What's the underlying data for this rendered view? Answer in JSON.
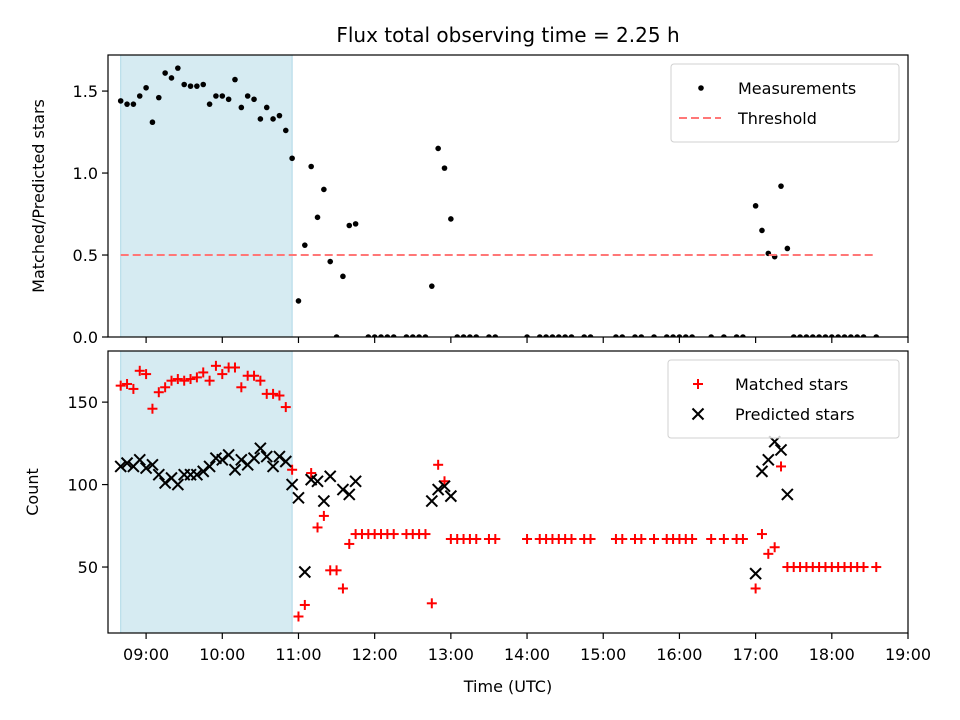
{
  "figure": {
    "title": "Flux total observing time = 2.25 h",
    "xlabel": "Time (UTC)"
  },
  "chart_data": [
    {
      "type": "scatter",
      "panel": "top",
      "ylabel": "Matched/Predicted stars",
      "xlim": [
        "08:30",
        "19:00"
      ],
      "ylim": [
        0,
        1.72
      ],
      "y_ticks": [
        "0.0",
        "0.5",
        "1.0",
        "1.5"
      ],
      "grid": false,
      "legend_position": "top-right",
      "shaded_span": {
        "start": "08:40",
        "end": "10:55",
        "color": "#add8e6"
      },
      "series": [
        {
          "name": "Measurements",
          "marker": "dot",
          "color": "#000000",
          "points": [
            [
              "08:40",
              1.44
            ],
            [
              "08:45",
              1.42
            ],
            [
              "08:50",
              1.42
            ],
            [
              "08:55",
              1.47
            ],
            [
              "09:00",
              1.52
            ],
            [
              "09:05",
              1.31
            ],
            [
              "09:10",
              1.46
            ],
            [
              "09:15",
              1.61
            ],
            [
              "09:20",
              1.58
            ],
            [
              "09:25",
              1.64
            ],
            [
              "09:30",
              1.54
            ],
            [
              "09:35",
              1.53
            ],
            [
              "09:40",
              1.53
            ],
            [
              "09:45",
              1.54
            ],
            [
              "09:50",
              1.42
            ],
            [
              "09:55",
              1.47
            ],
            [
              "10:00",
              1.47
            ],
            [
              "10:05",
              1.45
            ],
            [
              "10:10",
              1.57
            ],
            [
              "10:15",
              1.4
            ],
            [
              "10:20",
              1.47
            ],
            [
              "10:25",
              1.45
            ],
            [
              "10:30",
              1.33
            ],
            [
              "10:35",
              1.4
            ],
            [
              "10:40",
              1.33
            ],
            [
              "10:45",
              1.35
            ],
            [
              "10:50",
              1.26
            ],
            [
              "10:55",
              1.09
            ],
            [
              "11:00",
              0.22
            ],
            [
              "11:05",
              0.56
            ],
            [
              "11:10",
              1.04
            ],
            [
              "11:15",
              0.73
            ],
            [
              "11:20",
              0.9
            ],
            [
              "11:25",
              0.46
            ],
            [
              "11:30",
              0.0
            ],
            [
              "11:35",
              0.37
            ],
            [
              "11:40",
              0.68
            ],
            [
              "11:45",
              0.69
            ],
            [
              "11:55",
              0.0
            ],
            [
              "12:00",
              0.0
            ],
            [
              "12:05",
              0.0
            ],
            [
              "12:10",
              0.0
            ],
            [
              "12:15",
              0.0
            ],
            [
              "12:25",
              0.0
            ],
            [
              "12:30",
              0.0
            ],
            [
              "12:35",
              0.0
            ],
            [
              "12:40",
              0.0
            ],
            [
              "12:45",
              0.31
            ],
            [
              "12:50",
              1.15
            ],
            [
              "12:55",
              1.03
            ],
            [
              "13:00",
              0.72
            ],
            [
              "13:05",
              0.0
            ],
            [
              "13:10",
              0.0
            ],
            [
              "13:15",
              0.0
            ],
            [
              "13:20",
              0.0
            ],
            [
              "13:30",
              0.0
            ],
            [
              "13:35",
              0.0
            ],
            [
              "14:00",
              0.0
            ],
            [
              "14:10",
              0.0
            ],
            [
              "14:15",
              0.0
            ],
            [
              "14:20",
              0.0
            ],
            [
              "14:25",
              0.0
            ],
            [
              "14:30",
              0.0
            ],
            [
              "14:35",
              0.0
            ],
            [
              "14:45",
              0.0
            ],
            [
              "14:50",
              0.0
            ],
            [
              "15:10",
              0.0
            ],
            [
              "15:15",
              0.0
            ],
            [
              "15:25",
              0.0
            ],
            [
              "15:30",
              0.0
            ],
            [
              "15:40",
              0.0
            ],
            [
              "15:50",
              0.0
            ],
            [
              "15:55",
              0.0
            ],
            [
              "16:00",
              0.0
            ],
            [
              "16:05",
              0.0
            ],
            [
              "16:10",
              0.0
            ],
            [
              "16:25",
              0.0
            ],
            [
              "16:35",
              0.0
            ],
            [
              "16:45",
              0.0
            ],
            [
              "16:50",
              0.0
            ],
            [
              "17:00",
              0.8
            ],
            [
              "17:05",
              0.65
            ],
            [
              "17:10",
              0.51
            ],
            [
              "17:15",
              0.49
            ],
            [
              "17:20",
              0.92
            ],
            [
              "17:25",
              0.54
            ],
            [
              "17:30",
              0.0
            ],
            [
              "17:35",
              0.0
            ],
            [
              "17:40",
              0.0
            ],
            [
              "17:45",
              0.0
            ],
            [
              "17:50",
              0.0
            ],
            [
              "17:55",
              0.0
            ],
            [
              "18:00",
              0.0
            ],
            [
              "18:05",
              0.0
            ],
            [
              "18:10",
              0.0
            ],
            [
              "18:15",
              0.0
            ],
            [
              "18:20",
              0.0
            ],
            [
              "18:25",
              0.0
            ],
            [
              "18:35",
              0.0
            ]
          ]
        },
        {
          "name": "Threshold",
          "marker": "dashed-line",
          "color": "#ff7777",
          "points": [
            [
              "08:40",
              0.5
            ],
            [
              "18:35",
              0.5
            ]
          ]
        }
      ]
    },
    {
      "type": "scatter",
      "panel": "bottom",
      "ylabel": "Count",
      "xlabel": "Time (UTC)",
      "xlim": [
        "08:30",
        "19:00"
      ],
      "ylim": [
        10,
        181
      ],
      "x_ticks": [
        "09:00",
        "10:00",
        "11:00",
        "12:00",
        "13:00",
        "14:00",
        "15:00",
        "16:00",
        "17:00",
        "18:00",
        "19:00"
      ],
      "y_ticks": [
        "50",
        "100",
        "150"
      ],
      "grid": false,
      "legend_position": "top-right",
      "shaded_span": {
        "start": "08:40",
        "end": "10:55",
        "color": "#add8e6"
      },
      "series": [
        {
          "name": "Matched stars",
          "marker": "plus",
          "color": "#ff0000",
          "points": [
            [
              "08:40",
              160
            ],
            [
              "08:45",
              161
            ],
            [
              "08:50",
              158
            ],
            [
              "08:55",
              169
            ],
            [
              "09:00",
              167
            ],
            [
              "09:05",
              146
            ],
            [
              "09:10",
              156
            ],
            [
              "09:15",
              159
            ],
            [
              "09:20",
              163
            ],
            [
              "09:25",
              164
            ],
            [
              "09:30",
              163
            ],
            [
              "09:35",
              164
            ],
            [
              "09:40",
              165
            ],
            [
              "09:45",
              168
            ],
            [
              "09:50",
              163
            ],
            [
              "09:55",
              172
            ],
            [
              "10:00",
              167
            ],
            [
              "10:05",
              171
            ],
            [
              "10:10",
              171
            ],
            [
              "10:15",
              159
            ],
            [
              "10:20",
              166
            ],
            [
              "10:25",
              166
            ],
            [
              "10:30",
              163
            ],
            [
              "10:35",
              155
            ],
            [
              "10:40",
              155
            ],
            [
              "10:45",
              154
            ],
            [
              "10:50",
              147
            ],
            [
              "10:55",
              109
            ],
            [
              "11:00",
              20
            ],
            [
              "11:05",
              27
            ],
            [
              "11:10",
              107
            ],
            [
              "11:15",
              74
            ],
            [
              "11:20",
              81
            ],
            [
              "11:25",
              48
            ],
            [
              "11:30",
              48
            ],
            [
              "11:35",
              37
            ],
            [
              "11:40",
              64
            ],
            [
              "11:45",
              70
            ],
            [
              "11:50",
              70
            ],
            [
              "11:55",
              70
            ],
            [
              "12:00",
              70
            ],
            [
              "12:05",
              70
            ],
            [
              "12:10",
              70
            ],
            [
              "12:15",
              70
            ],
            [
              "12:25",
              70
            ],
            [
              "12:30",
              70
            ],
            [
              "12:35",
              70
            ],
            [
              "12:40",
              70
            ],
            [
              "12:45",
              28
            ],
            [
              "12:50",
              112
            ],
            [
              "12:55",
              102
            ],
            [
              "13:00",
              67
            ],
            [
              "13:05",
              67
            ],
            [
              "13:10",
              67
            ],
            [
              "13:15",
              67
            ],
            [
              "13:20",
              67
            ],
            [
              "13:30",
              67
            ],
            [
              "13:35",
              67
            ],
            [
              "14:00",
              67
            ],
            [
              "14:10",
              67
            ],
            [
              "14:15",
              67
            ],
            [
              "14:20",
              67
            ],
            [
              "14:25",
              67
            ],
            [
              "14:30",
              67
            ],
            [
              "14:35",
              67
            ],
            [
              "14:45",
              67
            ],
            [
              "14:50",
              67
            ],
            [
              "15:10",
              67
            ],
            [
              "15:15",
              67
            ],
            [
              "15:25",
              67
            ],
            [
              "15:30",
              67
            ],
            [
              "15:40",
              67
            ],
            [
              "15:50",
              67
            ],
            [
              "15:55",
              67
            ],
            [
              "16:00",
              67
            ],
            [
              "16:05",
              67
            ],
            [
              "16:10",
              67
            ],
            [
              "16:25",
              67
            ],
            [
              "16:35",
              67
            ],
            [
              "16:45",
              67
            ],
            [
              "16:50",
              67
            ],
            [
              "17:00",
              37
            ],
            [
              "17:05",
              70
            ],
            [
              "17:10",
              58
            ],
            [
              "17:15",
              62
            ],
            [
              "17:20",
              111
            ],
            [
              "17:25",
              50
            ],
            [
              "17:30",
              50
            ],
            [
              "17:35",
              50
            ],
            [
              "17:40",
              50
            ],
            [
              "17:45",
              50
            ],
            [
              "17:50",
              50
            ],
            [
              "17:55",
              50
            ],
            [
              "18:00",
              50
            ],
            [
              "18:05",
              50
            ],
            [
              "18:10",
              50
            ],
            [
              "18:15",
              50
            ],
            [
              "18:20",
              50
            ],
            [
              "18:25",
              50
            ],
            [
              "18:35",
              50
            ]
          ]
        },
        {
          "name": "Predicted stars",
          "marker": "x",
          "color": "#000000",
          "points": [
            [
              "08:40",
              111
            ],
            [
              "08:45",
              113
            ],
            [
              "08:50",
              111
            ],
            [
              "08:55",
              115
            ],
            [
              "09:00",
              110
            ],
            [
              "09:05",
              112
            ],
            [
              "09:10",
              106
            ],
            [
              "09:15",
              101
            ],
            [
              "09:20",
              104
            ],
            [
              "09:25",
              100
            ],
            [
              "09:30",
              106
            ],
            [
              "09:35",
              106
            ],
            [
              "09:40",
              106
            ],
            [
              "09:45",
              108
            ],
            [
              "09:50",
              111
            ],
            [
              "09:55",
              116
            ],
            [
              "10:00",
              115
            ],
            [
              "10:05",
              118
            ],
            [
              "10:10",
              109
            ],
            [
              "10:15",
              115
            ],
            [
              "10:20",
              112
            ],
            [
              "10:25",
              116
            ],
            [
              "10:30",
              122
            ],
            [
              "10:35",
              117
            ],
            [
              "10:40",
              111
            ],
            [
              "10:45",
              117
            ],
            [
              "10:50",
              114
            ],
            [
              "10:55",
              100
            ],
            [
              "11:00",
              92
            ],
            [
              "11:05",
              47
            ],
            [
              "11:10",
              103
            ],
            [
              "11:15",
              102
            ],
            [
              "11:20",
              90
            ],
            [
              "11:25",
              105
            ],
            [
              "11:35",
              97
            ],
            [
              "11:40",
              94
            ],
            [
              "11:45",
              102
            ],
            [
              "12:45",
              90
            ],
            [
              "12:50",
              97
            ],
            [
              "12:55",
              99
            ],
            [
              "13:00",
              93
            ],
            [
              "17:00",
              46
            ],
            [
              "17:05",
              108
            ],
            [
              "17:10",
              115
            ],
            [
              "17:15",
              126
            ],
            [
              "17:20",
              121
            ],
            [
              "17:25",
              94
            ]
          ]
        }
      ]
    }
  ]
}
